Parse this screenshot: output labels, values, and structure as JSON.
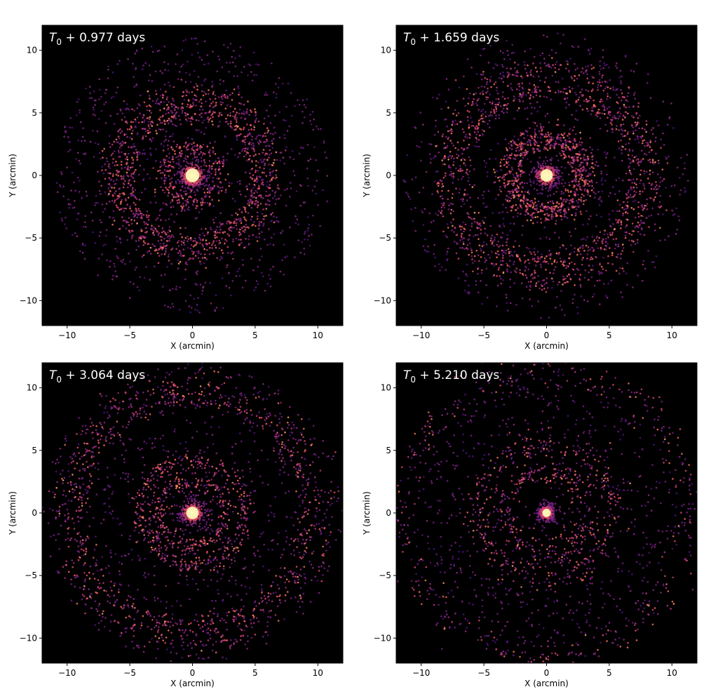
{
  "chart_data": [
    {
      "type": "scatter",
      "title": "T₀ + 0.977 days",
      "title_parts": {
        "base": "T",
        "sub": "0",
        "rest": " + 0.977 days"
      },
      "xlabel": "X (arcmin)",
      "ylabel": "Y (arcmin)",
      "xlim": [
        -12,
        12
      ],
      "ylim": [
        -12,
        12
      ],
      "xticks": [
        -10,
        -5,
        0,
        5,
        10
      ],
      "yticks": [
        -10,
        -5,
        0,
        5,
        10
      ],
      "xtick_labels": [
        "−10",
        "−5",
        "0",
        "5",
        "10"
      ],
      "ytick_labels": [
        "−10",
        "−5",
        "0",
        "5",
        "10"
      ],
      "background": "#000000",
      "colormap": "magma",
      "core_radius": 1.0,
      "rings": [
        {
          "radius": 2.2,
          "width": 0.45,
          "weight": 0.1
        },
        {
          "radius": 5.1,
          "width": 0.35,
          "weight": 0.18
        },
        {
          "radius": 6.4,
          "width": 0.55,
          "weight": 0.22
        }
      ],
      "background_scatter_radius": 11.0,
      "grid": false
    },
    {
      "type": "scatter",
      "title": "T₀ + 1.659 days",
      "title_parts": {
        "base": "T",
        "sub": "0",
        "rest": " + 1.659 days"
      },
      "xlabel": "X (arcmin)",
      "ylabel": "Y (arcmin)",
      "xlim": [
        -12,
        12
      ],
      "ylim": [
        -12,
        12
      ],
      "xticks": [
        -10,
        -5,
        0,
        5,
        10
      ],
      "yticks": [
        -10,
        -5,
        0,
        5,
        10
      ],
      "xtick_labels": [
        "−10",
        "−5",
        "0",
        "5",
        "10"
      ],
      "ytick_labels": [
        "−10",
        "−5",
        "0",
        "5",
        "10"
      ],
      "background": "#000000",
      "colormap": "magma",
      "core_radius": 0.9,
      "rings": [
        {
          "radius": 2.6,
          "width": 0.35,
          "weight": 0.14
        },
        {
          "radius": 3.4,
          "width": 0.4,
          "weight": 0.14
        },
        {
          "radius": 6.8,
          "width": 0.35,
          "weight": 0.18
        },
        {
          "radius": 8.4,
          "width": 0.6,
          "weight": 0.22
        }
      ],
      "background_scatter_radius": 11.5,
      "grid": false
    },
    {
      "type": "scatter",
      "title": "T₀ + 3.064 days",
      "title_parts": {
        "base": "T",
        "sub": "0",
        "rest": " + 3.064 days"
      },
      "xlabel": "X (arcmin)",
      "ylabel": "Y (arcmin)",
      "xlim": [
        -12,
        12
      ],
      "ylim": [
        -12,
        12
      ],
      "xticks": [
        -10,
        -5,
        0,
        5,
        10
      ],
      "yticks": [
        -10,
        -5,
        0,
        5,
        10
      ],
      "xtick_labels": [
        "−10",
        "−5",
        "0",
        "5",
        "10"
      ],
      "ytick_labels": [
        "−10",
        "−5",
        "0",
        "5",
        "10"
      ],
      "background": "#000000",
      "colormap": "magma",
      "core_radius": 0.9,
      "rings": [
        {
          "radius": 2.6,
          "width": 0.4,
          "weight": 0.1
        },
        {
          "radius": 4.2,
          "width": 0.4,
          "weight": 0.14
        },
        {
          "radius": 9.1,
          "width": 0.4,
          "weight": 0.16
        },
        {
          "radius": 10.3,
          "width": 0.7,
          "weight": 0.16
        }
      ],
      "background_scatter_radius": 12.0,
      "grid": false
    },
    {
      "type": "scatter",
      "title": "T₀ + 5.210 days",
      "title_parts": {
        "base": "T",
        "sub": "0",
        "rest": " + 5.210 days"
      },
      "xlabel": "X (arcmin)",
      "ylabel": "Y (arcmin)",
      "xlim": [
        -12,
        12
      ],
      "ylim": [
        -12,
        12
      ],
      "xticks": [
        -10,
        -5,
        0,
        5,
        10
      ],
      "yticks": [
        -10,
        -5,
        0,
        5,
        10
      ],
      "xtick_labels": [
        "−10",
        "−5",
        "0",
        "5",
        "10"
      ],
      "ytick_labels": [
        "−10",
        "−5",
        "0",
        "5",
        "10"
      ],
      "background": "#000000",
      "colormap": "magma",
      "core_radius": 0.6,
      "rings": [
        {
          "radius": 3.3,
          "width": 0.6,
          "weight": 0.1
        },
        {
          "radius": 5.4,
          "width": 0.55,
          "weight": 0.12
        },
        {
          "radius": 11.5,
          "width": 0.8,
          "weight": 0.12
        }
      ],
      "background_scatter_radius": 12.0,
      "grid": false
    }
  ]
}
